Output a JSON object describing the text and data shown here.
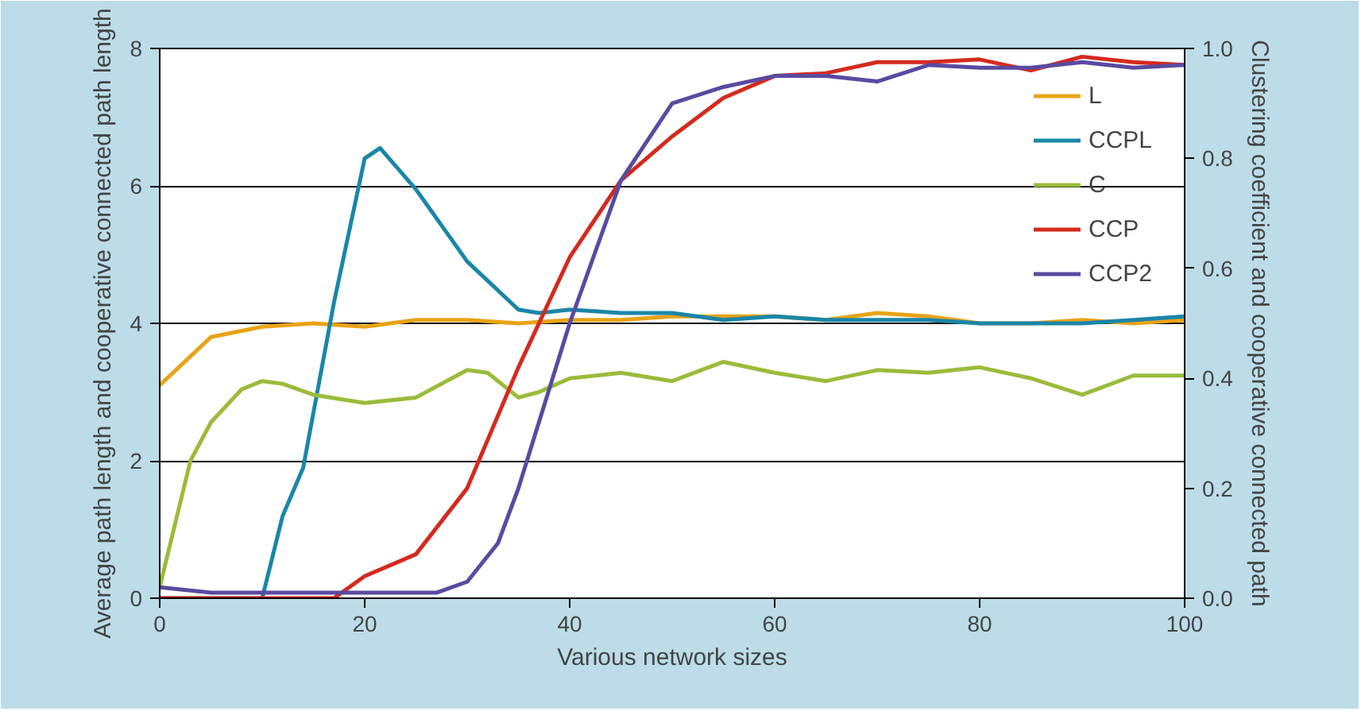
{
  "chart_data": {
    "type": "line",
    "xlabel": "Various network sizes",
    "ylabel": "Average path length and cooperative connected path length",
    "y2label": "Clustering coefficient and cooperative connected path",
    "xlim": [
      0,
      100
    ],
    "xticks": [
      0,
      20,
      40,
      60,
      80,
      100
    ],
    "ylim": [
      0,
      8
    ],
    "yticks": [
      0,
      2,
      4,
      6,
      8
    ],
    "y2lim": [
      0,
      1.0
    ],
    "y2ticks": [
      {
        "value": 0,
        "label": "0.0"
      },
      0.2,
      0.4,
      0.6,
      0.8,
      {
        "value": 1,
        "label": "1.0"
      }
    ],
    "grid": "y",
    "legend": "top right",
    "line_style": "solid",
    "x": [
      0,
      5,
      10,
      15,
      20,
      25,
      30,
      35,
      40,
      45,
      50,
      55,
      60,
      65,
      70,
      75,
      80,
      85,
      90,
      95,
      100
    ],
    "series": [
      {
        "name": "L",
        "color": "#e8a317",
        "values": [
          3.1,
          3.8,
          3.95,
          4.0,
          3.95,
          4.05,
          4.05,
          4.0,
          4.05,
          4.05,
          4.1,
          4.1,
          4.1,
          4.05,
          4.15,
          4.1,
          4.0,
          4.0,
          4.05,
          4.0,
          4.05
        ]
      },
      {
        "name": "CCPL",
        "color": "#1a86a8",
        "x": [
          0,
          5,
          10,
          12,
          14,
          17,
          20,
          21.5,
          25,
          30,
          35,
          37,
          40,
          45,
          50,
          55,
          60,
          65,
          70,
          75,
          80,
          85,
          90,
          95,
          100
        ],
        "values": [
          0,
          0,
          0,
          1.2,
          1.9,
          4.3,
          6.4,
          6.55,
          5.95,
          4.9,
          4.2,
          4.15,
          4.2,
          4.15,
          4.15,
          4.05,
          4.1,
          4.05,
          4.05,
          4.05,
          4.0,
          4.0,
          4.0,
          4.05,
          4.1
        ]
      },
      {
        "name": "C",
        "color": "#9bbb3b",
        "axis": "y2",
        "x": [
          0,
          3,
          5,
          8,
          10,
          12,
          15,
          20,
          25,
          30,
          32,
          35,
          37,
          40,
          45,
          50,
          55,
          60,
          65,
          70,
          75,
          80,
          85,
          90,
          95,
          100
        ],
        "values": [
          0.02,
          0.25,
          0.32,
          0.38,
          0.395,
          0.39,
          0.37,
          0.355,
          0.365,
          0.415,
          0.41,
          0.365,
          0.375,
          0.4,
          0.41,
          0.395,
          0.43,
          0.41,
          0.395,
          0.415,
          0.41,
          0.42,
          0.4,
          0.37,
          0.405,
          0.405
        ]
      },
      {
        "name": "CCP",
        "color": "#d42a1e",
        "axis": "y2",
        "x": [
          0,
          10,
          17,
          20,
          25,
          30,
          35,
          40,
          45,
          50,
          55,
          60,
          65,
          70,
          75,
          80,
          85,
          90,
          95,
          100
        ],
        "values": [
          0,
          0,
          0,
          0.04,
          0.08,
          0.2,
          0.42,
          0.62,
          0.76,
          0.84,
          0.91,
          0.95,
          0.955,
          0.975,
          0.975,
          0.98,
          0.96,
          0.985,
          0.975,
          0.97
        ]
      },
      {
        "name": "CCP2",
        "color": "#5a4aa0",
        "axis": "y2",
        "x": [
          0,
          5,
          10,
          15,
          20,
          27,
          30,
          33,
          35,
          40,
          45,
          50,
          55,
          60,
          65,
          70,
          75,
          80,
          85,
          90,
          95,
          100
        ],
        "values": [
          0.02,
          0.01,
          0.01,
          0.01,
          0.01,
          0.01,
          0.03,
          0.1,
          0.2,
          0.5,
          0.76,
          0.9,
          0.93,
          0.95,
          0.95,
          0.94,
          0.97,
          0.965,
          0.965,
          0.975,
          0.965,
          0.97
        ]
      }
    ]
  }
}
